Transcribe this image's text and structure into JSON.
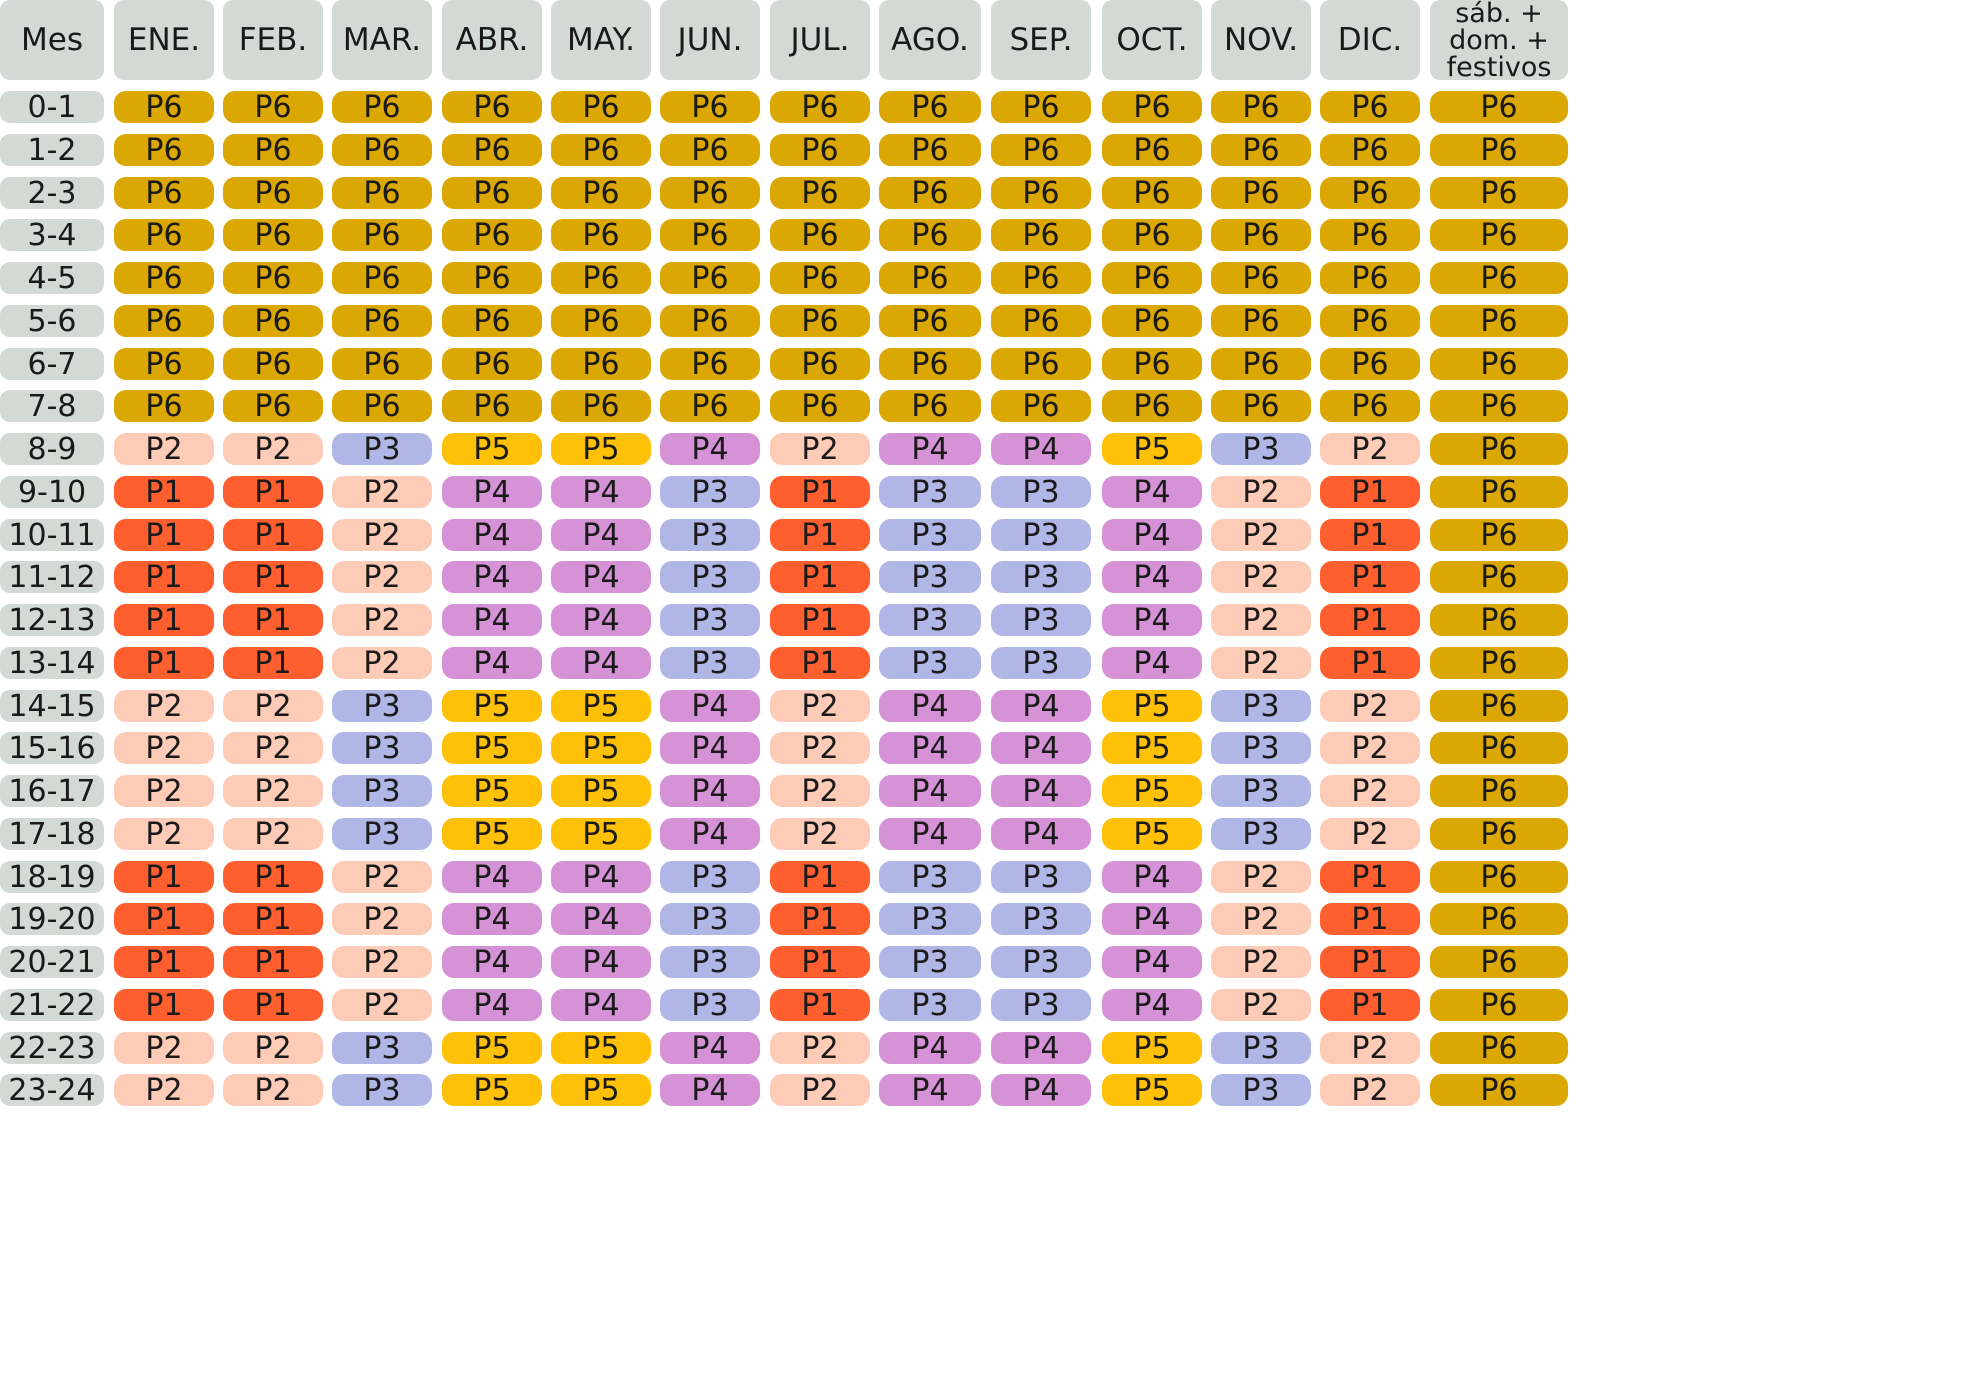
{
  "header": {
    "corner": "Mes",
    "months": [
      "ENE.",
      "FEB.",
      "MAR.",
      "ABR.",
      "MAY.",
      "JUN.",
      "JUL.",
      "AGO.",
      "SEP.",
      "OCT.",
      "NOV.",
      "DIC."
    ],
    "weekend": "sáb. + dom. + festivos"
  },
  "colors": {
    "P1": "#ff5f2e",
    "P2": "#fdcbb6",
    "P3": "#b0b6e6",
    "P4": "#d592d6",
    "P5": "#ffc108",
    "P6": "#dba703",
    "label_bg": "#d3dad6"
  },
  "rows": [
    {
      "hour": "0-1",
      "periods": [
        "P6",
        "P6",
        "P6",
        "P6",
        "P6",
        "P6",
        "P6",
        "P6",
        "P6",
        "P6",
        "P6",
        "P6"
      ],
      "weekend": "P6"
    },
    {
      "hour": "1-2",
      "periods": [
        "P6",
        "P6",
        "P6",
        "P6",
        "P6",
        "P6",
        "P6",
        "P6",
        "P6",
        "P6",
        "P6",
        "P6"
      ],
      "weekend": "P6"
    },
    {
      "hour": "2-3",
      "periods": [
        "P6",
        "P6",
        "P6",
        "P6",
        "P6",
        "P6",
        "P6",
        "P6",
        "P6",
        "P6",
        "P6",
        "P6"
      ],
      "weekend": "P6"
    },
    {
      "hour": "3-4",
      "periods": [
        "P6",
        "P6",
        "P6",
        "P6",
        "P6",
        "P6",
        "P6",
        "P6",
        "P6",
        "P6",
        "P6",
        "P6"
      ],
      "weekend": "P6"
    },
    {
      "hour": "4-5",
      "periods": [
        "P6",
        "P6",
        "P6",
        "P6",
        "P6",
        "P6",
        "P6",
        "P6",
        "P6",
        "P6",
        "P6",
        "P6"
      ],
      "weekend": "P6"
    },
    {
      "hour": "5-6",
      "periods": [
        "P6",
        "P6",
        "P6",
        "P6",
        "P6",
        "P6",
        "P6",
        "P6",
        "P6",
        "P6",
        "P6",
        "P6"
      ],
      "weekend": "P6"
    },
    {
      "hour": "6-7",
      "periods": [
        "P6",
        "P6",
        "P6",
        "P6",
        "P6",
        "P6",
        "P6",
        "P6",
        "P6",
        "P6",
        "P6",
        "P6"
      ],
      "weekend": "P6"
    },
    {
      "hour": "7-8",
      "periods": [
        "P6",
        "P6",
        "P6",
        "P6",
        "P6",
        "P6",
        "P6",
        "P6",
        "P6",
        "P6",
        "P6",
        "P6"
      ],
      "weekend": "P6"
    },
    {
      "hour": "8-9",
      "periods": [
        "P2",
        "P2",
        "P3",
        "P5",
        "P5",
        "P4",
        "P2",
        "P4",
        "P4",
        "P5",
        "P3",
        "P2"
      ],
      "weekend": "P6"
    },
    {
      "hour": "9-10",
      "periods": [
        "P1",
        "P1",
        "P2",
        "P4",
        "P4",
        "P3",
        "P1",
        "P3",
        "P3",
        "P4",
        "P2",
        "P1"
      ],
      "weekend": "P6"
    },
    {
      "hour": "10-11",
      "periods": [
        "P1",
        "P1",
        "P2",
        "P4",
        "P4",
        "P3",
        "P1",
        "P3",
        "P3",
        "P4",
        "P2",
        "P1"
      ],
      "weekend": "P6"
    },
    {
      "hour": "11-12",
      "periods": [
        "P1",
        "P1",
        "P2",
        "P4",
        "P4",
        "P3",
        "P1",
        "P3",
        "P3",
        "P4",
        "P2",
        "P1"
      ],
      "weekend": "P6"
    },
    {
      "hour": "12-13",
      "periods": [
        "P1",
        "P1",
        "P2",
        "P4",
        "P4",
        "P3",
        "P1",
        "P3",
        "P3",
        "P4",
        "P2",
        "P1"
      ],
      "weekend": "P6"
    },
    {
      "hour": "13-14",
      "periods": [
        "P1",
        "P1",
        "P2",
        "P4",
        "P4",
        "P3",
        "P1",
        "P3",
        "P3",
        "P4",
        "P2",
        "P1"
      ],
      "weekend": "P6"
    },
    {
      "hour": "14-15",
      "periods": [
        "P2",
        "P2",
        "P3",
        "P5",
        "P5",
        "P4",
        "P2",
        "P4",
        "P4",
        "P5",
        "P3",
        "P2"
      ],
      "weekend": "P6"
    },
    {
      "hour": "15-16",
      "periods": [
        "P2",
        "P2",
        "P3",
        "P5",
        "P5",
        "P4",
        "P2",
        "P4",
        "P4",
        "P5",
        "P3",
        "P2"
      ],
      "weekend": "P6"
    },
    {
      "hour": "16-17",
      "periods": [
        "P2",
        "P2",
        "P3",
        "P5",
        "P5",
        "P4",
        "P2",
        "P4",
        "P4",
        "P5",
        "P3",
        "P2"
      ],
      "weekend": "P6"
    },
    {
      "hour": "17-18",
      "periods": [
        "P2",
        "P2",
        "P3",
        "P5",
        "P5",
        "P4",
        "P2",
        "P4",
        "P4",
        "P5",
        "P3",
        "P2"
      ],
      "weekend": "P6"
    },
    {
      "hour": "18-19",
      "periods": [
        "P1",
        "P1",
        "P2",
        "P4",
        "P4",
        "P3",
        "P1",
        "P3",
        "P3",
        "P4",
        "P2",
        "P1"
      ],
      "weekend": "P6"
    },
    {
      "hour": "19-20",
      "periods": [
        "P1",
        "P1",
        "P2",
        "P4",
        "P4",
        "P3",
        "P1",
        "P3",
        "P3",
        "P4",
        "P2",
        "P1"
      ],
      "weekend": "P6"
    },
    {
      "hour": "20-21",
      "periods": [
        "P1",
        "P1",
        "P2",
        "P4",
        "P4",
        "P3",
        "P1",
        "P3",
        "P3",
        "P4",
        "P2",
        "P1"
      ],
      "weekend": "P6"
    },
    {
      "hour": "21-22",
      "periods": [
        "P1",
        "P1",
        "P2",
        "P4",
        "P4",
        "P3",
        "P1",
        "P3",
        "P3",
        "P4",
        "P2",
        "P1"
      ],
      "weekend": "P6"
    },
    {
      "hour": "22-23",
      "periods": [
        "P2",
        "P2",
        "P3",
        "P5",
        "P5",
        "P4",
        "P2",
        "P4",
        "P4",
        "P5",
        "P3",
        "P2"
      ],
      "weekend": "P6"
    },
    {
      "hour": "23-24",
      "periods": [
        "P2",
        "P2",
        "P3",
        "P5",
        "P5",
        "P4",
        "P2",
        "P4",
        "P4",
        "P5",
        "P3",
        "P2"
      ],
      "weekend": "P6"
    }
  ]
}
